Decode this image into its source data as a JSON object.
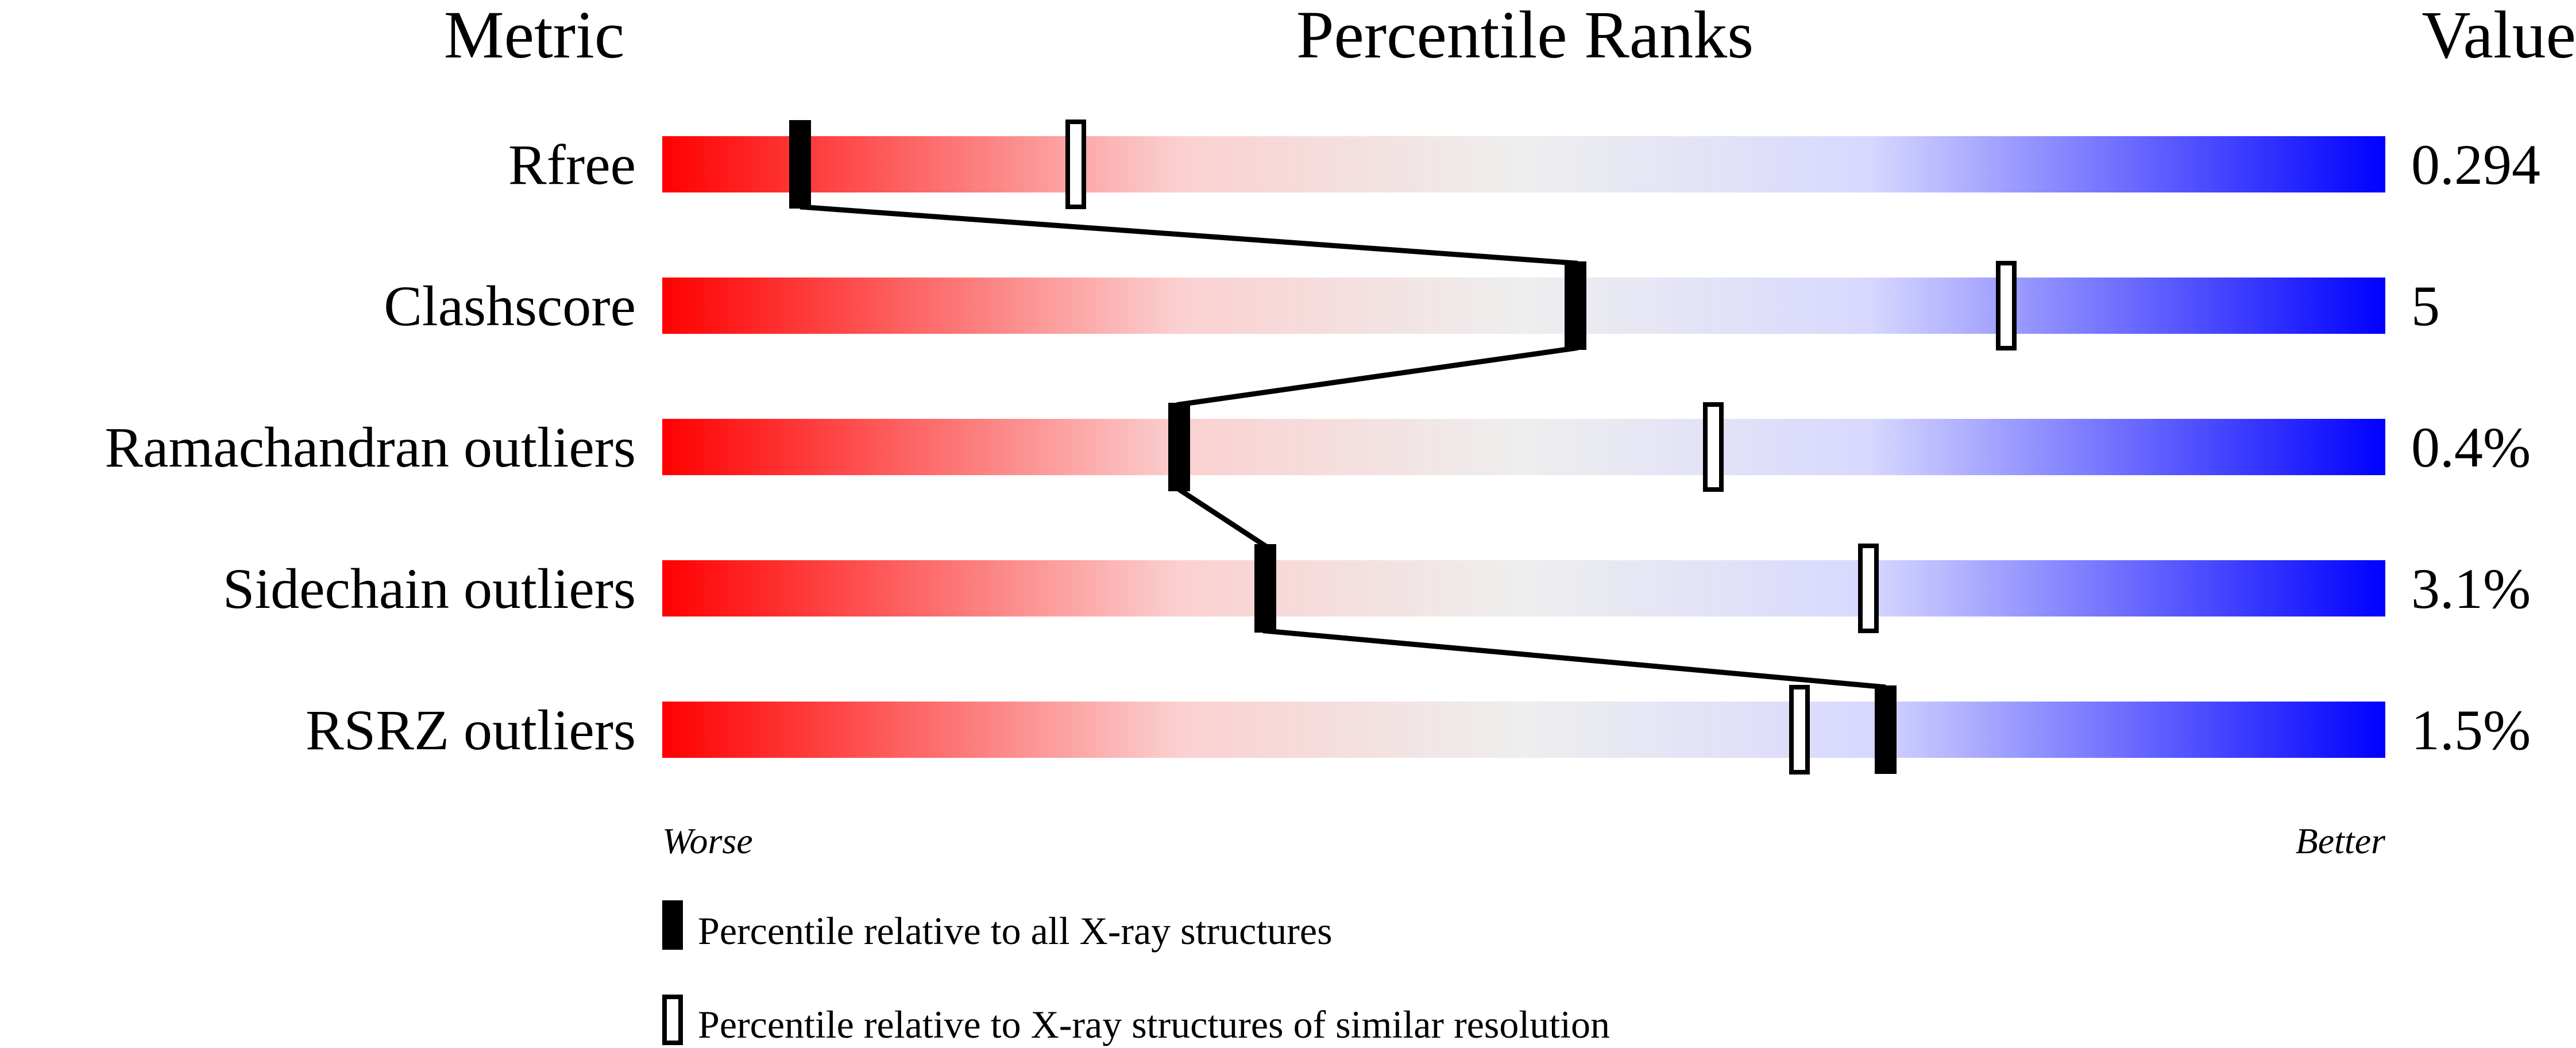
{
  "chart_data": {
    "type": "percentile-slider",
    "headers": {
      "metric": "Metric",
      "ranks": "Percentile Ranks",
      "value": "Value"
    },
    "scale": {
      "min": 0,
      "max": 100,
      "left_label": "Worse",
      "right_label": "Better"
    },
    "gradient_colors": [
      "#ff0000",
      "#fbd0d0",
      "#eeeeee",
      "#d8d8ff",
      "#0000ff"
    ],
    "rows": [
      {
        "metric": "Rfree",
        "value": "0.294",
        "percentile_all": 8,
        "percentile_similar": 24
      },
      {
        "metric": "Clashscore",
        "value": "5",
        "percentile_all": 53,
        "percentile_similar": 78
      },
      {
        "metric": "Ramachandran outliers",
        "value": "0.4%",
        "percentile_all": 30,
        "percentile_similar": 61
      },
      {
        "metric": "Sidechain outliers",
        "value": "3.1%",
        "percentile_all": 35,
        "percentile_similar": 70
      },
      {
        "metric": "RSRZ outliers",
        "value": "1.5%",
        "percentile_all": 71,
        "percentile_similar": 66
      }
    ],
    "legend": [
      {
        "marker": "filled",
        "label": "Percentile relative to all X-ray structures"
      },
      {
        "marker": "open",
        "label": "Percentile relative to X-ray structures of similar resolution"
      }
    ]
  }
}
